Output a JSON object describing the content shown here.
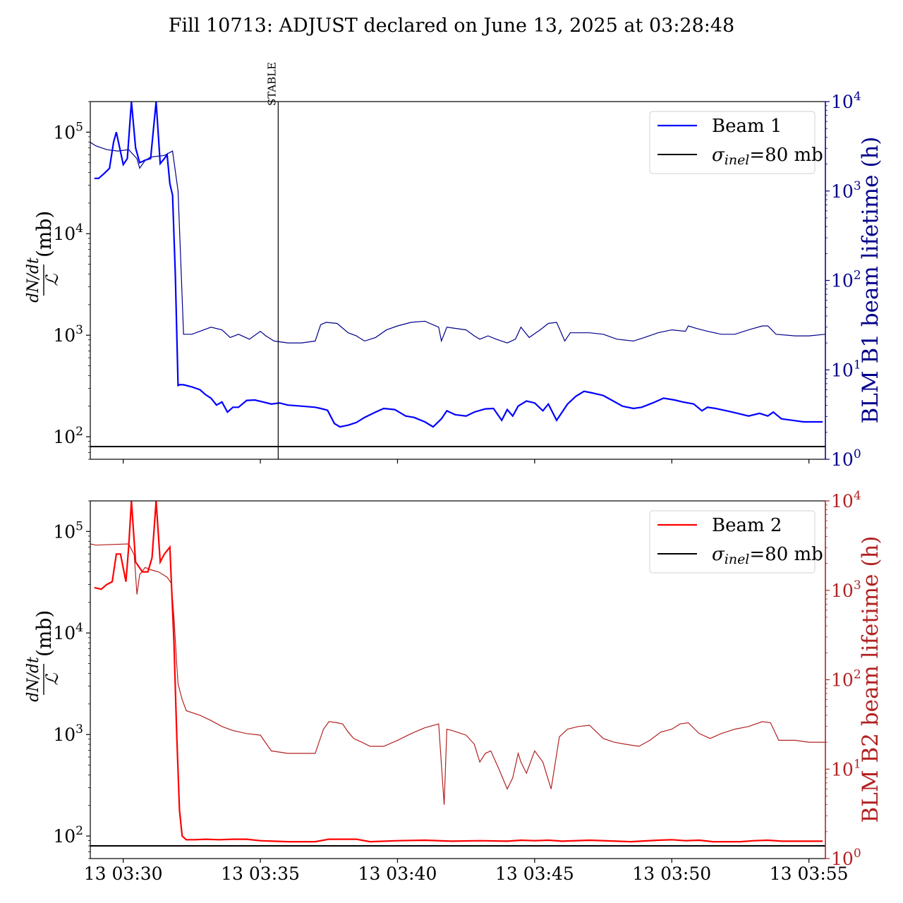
{
  "figure": {
    "title": "Fill 10713: ADJUST declared on June 13, 2025 at 03:28:48",
    "xticks": [
      "13 03:30",
      "13 03:35",
      "13 03:40",
      "13 03:45",
      "13 03:50",
      "13 03:55"
    ],
    "xtick_minutes": [
      30,
      35,
      40,
      45,
      50,
      55
    ],
    "x_range_minutes": [
      28.8,
      55.6
    ],
    "event": {
      "label": "STABLE",
      "minute": 35.65
    }
  },
  "chart_data": [
    {
      "type": "line",
      "panel": "top",
      "ylabel_left": "dN/dt / ℒ (mb)",
      "ylabel_right": "BLM B1 beam lifetime (h)",
      "yscale": "log",
      "ylim_left": [
        60,
        200000
      ],
      "ylim_right": [
        1,
        10000
      ],
      "yticks_left": [
        {
          "exp": "2",
          "value": 100
        },
        {
          "exp": "3",
          "value": 1000
        },
        {
          "exp": "4",
          "value": 10000
        },
        {
          "exp": "5",
          "value": 100000
        }
      ],
      "yticks_right": [
        {
          "exp": "0",
          "value": 1
        },
        {
          "exp": "1",
          "value": 10
        },
        {
          "exp": "2",
          "value": 100
        },
        {
          "exp": "3",
          "value": 1000
        },
        {
          "exp": "4",
          "value": 10000
        }
      ],
      "right_axis_color": "#00008b",
      "legend": {
        "placement": "top-right",
        "entries": [
          {
            "label": "Beam 1",
            "color": "#0000ff"
          },
          {
            "label": "σinel=80 mb",
            "main": "σ",
            "sub": "inel",
            "rest": "=80 mb",
            "color": "#000000"
          }
        ]
      },
      "series": [
        {
          "name": "Beam 1",
          "axis": "left",
          "color": "#0000ff",
          "x": [
            28.95,
            29.1,
            29.3,
            29.5,
            29.65,
            29.75,
            30.0,
            30.15,
            30.3,
            30.45,
            30.6,
            30.8,
            31.0,
            31.2,
            31.35,
            31.5,
            31.6,
            31.7,
            31.8,
            31.9,
            32.0,
            32.05,
            32.2,
            32.5,
            32.8,
            33.0,
            33.2,
            33.4,
            33.6,
            33.8,
            34.0,
            34.2,
            34.5,
            34.8,
            35.1,
            35.4,
            35.7,
            36.0,
            36.5,
            37.0,
            37.2,
            37.45,
            37.7,
            37.9,
            38.2,
            38.5,
            38.8,
            39.2,
            39.5,
            39.9,
            40.3,
            40.6,
            41.0,
            41.3,
            41.6,
            41.8,
            42.1,
            42.5,
            42.8,
            43.2,
            43.5,
            43.8,
            44.0,
            44.2,
            44.4,
            44.7,
            45.0,
            45.3,
            45.5,
            45.8,
            46.2,
            46.5,
            46.8,
            47.1,
            47.5,
            47.8,
            48.2,
            48.6,
            48.9,
            49.3,
            49.7,
            50.1,
            50.4,
            50.8,
            51.1,
            51.3,
            51.6,
            52.0,
            52.4,
            52.8,
            53.2,
            53.5,
            53.7,
            54.0,
            54.4,
            54.8,
            55.0,
            55.5
          ],
          "values": [
            35000,
            35000,
            39000,
            44000,
            80000,
            100000,
            48000,
            55000,
            200000,
            70000,
            50000,
            53000,
            55000,
            200000,
            49000,
            55000,
            60000,
            31000,
            24000,
            4000,
            320,
            325,
            325,
            310,
            290,
            260,
            240,
            205,
            220,
            175,
            195,
            195,
            228,
            230,
            220,
            210,
            215,
            205,
            200,
            195,
            190,
            182,
            135,
            125,
            130,
            138,
            155,
            175,
            190,
            185,
            160,
            155,
            140,
            125,
            150,
            180,
            165,
            160,
            175,
            188,
            190,
            145,
            185,
            160,
            200,
            225,
            215,
            180,
            210,
            145,
            210,
            250,
            280,
            270,
            255,
            230,
            200,
            190,
            195,
            215,
            240,
            230,
            220,
            210,
            180,
            195,
            190,
            180,
            170,
            160,
            170,
            160,
            175,
            150,
            145,
            140,
            140,
            140
          ]
        },
        {
          "name": "BLM B1 beam lifetime",
          "axis": "right",
          "color": "#00008b",
          "x": [
            28.8,
            29.0,
            29.4,
            29.8,
            30.2,
            30.5,
            30.6,
            30.8,
            31.0,
            31.5,
            31.8,
            32.0,
            32.2,
            32.5,
            32.8,
            33.2,
            33.6,
            33.9,
            34.2,
            34.6,
            35.0,
            35.2,
            35.5,
            36.0,
            36.5,
            37.0,
            37.2,
            37.4,
            37.8,
            38.2,
            38.5,
            38.8,
            39.2,
            39.6,
            40.0,
            40.5,
            41.0,
            41.5,
            41.6,
            41.8,
            42.5,
            42.8,
            43.0,
            43.3,
            43.6,
            44.0,
            44.3,
            44.5,
            44.8,
            45.2,
            45.5,
            45.8,
            46.1,
            46.3,
            46.5,
            47.0,
            47.5,
            48.0,
            48.6,
            49.0,
            49.5,
            50.0,
            50.5,
            50.6,
            50.9,
            51.3,
            51.8,
            52.3,
            52.8,
            53.3,
            53.5,
            53.8,
            54.5,
            55.0,
            55.6
          ],
          "values": [
            3500,
            3200,
            2900,
            2800,
            2900,
            2300,
            1800,
            2200,
            2400,
            2500,
            2800,
            1000,
            25,
            25,
            27,
            30,
            28,
            23,
            25,
            22,
            27,
            24,
            21,
            20,
            20,
            21,
            32,
            34,
            33,
            26,
            24,
            21,
            23,
            28,
            31,
            34,
            35,
            30,
            21,
            30,
            28,
            24,
            22,
            24,
            22,
            20,
            22,
            30,
            23,
            28,
            33,
            34,
            21,
            26,
            26,
            26,
            25,
            22,
            21,
            23,
            26,
            28,
            27,
            31,
            29,
            27,
            25,
            25,
            28,
            31,
            31,
            25,
            24,
            24,
            25
          ]
        }
      ],
      "reference_line": {
        "label": "σinel=80 mb",
        "value": 80,
        "color": "#000000"
      }
    },
    {
      "type": "line",
      "panel": "bottom",
      "ylabel_left": "dN/dt / ℒ (mb)",
      "ylabel_right": "BLM B2 beam lifetime (h)",
      "yscale": "log",
      "ylim_left": [
        60,
        200000
      ],
      "ylim_right": [
        1,
        10000
      ],
      "yticks_left": [
        {
          "exp": "2",
          "value": 100
        },
        {
          "exp": "3",
          "value": 1000
        },
        {
          "exp": "4",
          "value": 10000
        },
        {
          "exp": "5",
          "value": 100000
        }
      ],
      "yticks_right": [
        {
          "exp": "0",
          "value": 1
        },
        {
          "exp": "1",
          "value": 10
        },
        {
          "exp": "2",
          "value": 100
        },
        {
          "exp": "3",
          "value": 1000
        },
        {
          "exp": "4",
          "value": 10000
        }
      ],
      "right_axis_color": "#b22222",
      "legend": {
        "placement": "top-right",
        "entries": [
          {
            "label": "Beam 2",
            "color": "#ff0000"
          },
          {
            "label": "σinel=80 mb",
            "main": "σ",
            "sub": "inel",
            "rest": "=80 mb",
            "color": "#000000"
          }
        ]
      },
      "series": [
        {
          "name": "Beam 2",
          "axis": "left",
          "color": "#ff0000",
          "x": [
            28.95,
            29.2,
            29.4,
            29.6,
            29.75,
            29.9,
            30.1,
            30.2,
            30.3,
            30.45,
            30.7,
            30.9,
            31.05,
            31.2,
            31.35,
            31.5,
            31.7,
            31.85,
            31.95,
            32.05,
            32.15,
            32.3,
            32.6,
            33.0,
            33.5,
            34.0,
            34.5,
            35.0,
            36.0,
            37.0,
            37.5,
            38.5,
            39.0,
            40.0,
            41.0,
            42.0,
            43.0,
            44.0,
            44.5,
            45.0,
            45.5,
            46.0,
            47.0,
            48.0,
            48.5,
            49.5,
            50.0,
            50.5,
            51.0,
            51.5,
            52.5,
            53.0,
            53.5,
            54.0,
            55.5
          ],
          "values": [
            28000,
            27000,
            30000,
            32000,
            60000,
            60000,
            32000,
            70000,
            200000,
            50000,
            40000,
            40000,
            55000,
            200000,
            50000,
            60000,
            70000,
            8000,
            1000,
            180,
            100,
            92,
            92,
            93,
            92,
            93,
            93,
            90,
            88,
            88,
            93,
            93,
            88,
            90,
            91,
            89,
            90,
            89,
            91,
            90,
            91,
            89,
            91,
            89,
            88,
            91,
            92,
            90,
            91,
            88,
            88,
            90,
            91,
            89,
            89
          ]
        },
        {
          "name": "BLM B2 beam lifetime",
          "axis": "right",
          "color": "#b22222",
          "x": [
            28.8,
            29.0,
            30.2,
            30.4,
            30.5,
            30.6,
            30.8,
            31.0,
            31.3,
            31.6,
            31.75,
            31.85,
            31.95,
            32.0,
            32.15,
            32.3,
            32.8,
            33.2,
            33.6,
            34.0,
            34.5,
            35.0,
            35.4,
            36.0,
            37.0,
            37.3,
            37.5,
            37.8,
            38.0,
            38.2,
            38.4,
            38.7,
            39.0,
            39.5,
            40.0,
            40.5,
            41.0,
            41.5,
            41.7,
            41.8,
            42.0,
            42.5,
            42.8,
            43.0,
            43.2,
            43.4,
            43.7,
            44.0,
            44.2,
            44.4,
            44.5,
            44.7,
            45.0,
            45.3,
            45.6,
            45.9,
            46.2,
            46.6,
            47.0,
            47.5,
            47.9,
            48.3,
            48.8,
            49.2,
            49.6,
            50.0,
            50.3,
            50.6,
            51.0,
            51.4,
            51.8,
            52.3,
            52.8,
            53.3,
            53.6,
            53.9,
            54.5,
            55.0,
            55.6
          ],
          "values": [
            3300,
            3200,
            3300,
            2500,
            900,
            1500,
            1800,
            1700,
            1600,
            1400,
            1200,
            500,
            150,
            90,
            60,
            45,
            40,
            35,
            30,
            27,
            25,
            24,
            16,
            15,
            15,
            28,
            34,
            33,
            32,
            26,
            22,
            20,
            18,
            18,
            21,
            25,
            29,
            32,
            4,
            28,
            27,
            24,
            19,
            12,
            15,
            16,
            10,
            6,
            8,
            15,
            12,
            9,
            16,
            12,
            6,
            23,
            28,
            30,
            31,
            22,
            20,
            19,
            18,
            21,
            26,
            28,
            32,
            33,
            25,
            22,
            25,
            28,
            30,
            34,
            33,
            21,
            21,
            20,
            20
          ]
        }
      ],
      "reference_line": {
        "label": "σinel=80 mb",
        "value": 80,
        "color": "#000000"
      }
    }
  ]
}
